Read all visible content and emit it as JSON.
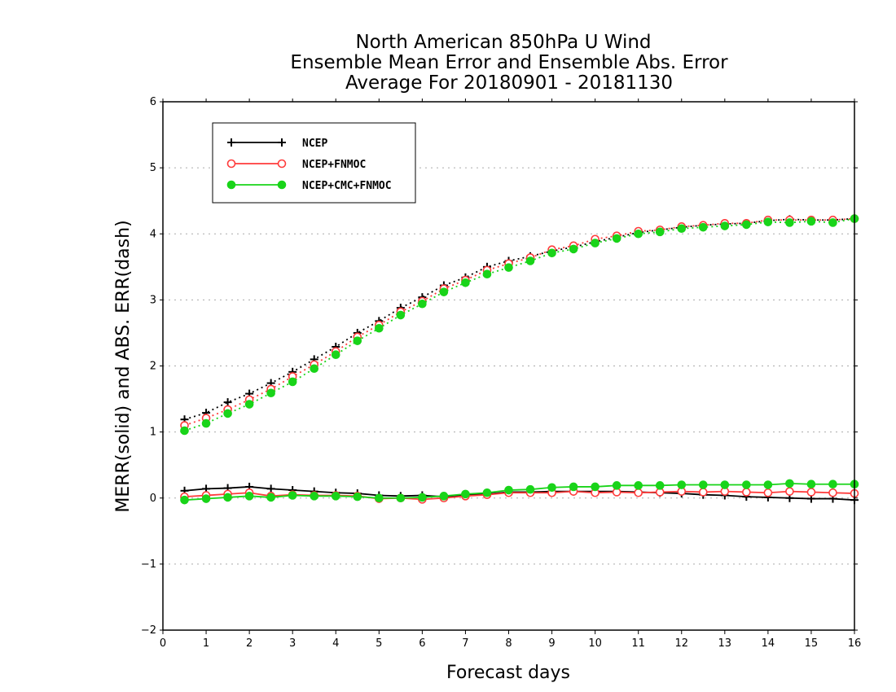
{
  "chart_data": {
    "type": "line",
    "title": [
      "North American 850hPa U Wind",
      "Ensemble Mean Error and Ensemble Abs. Error",
      "Average For 20180901 - 20181130"
    ],
    "xlabel": "Forecast days",
    "ylabel": "MERR(solid) and ABS. ERR(dash)",
    "xlim": [
      0,
      16
    ],
    "ylim": [
      -2,
      6
    ],
    "xticks": [
      0,
      1,
      2,
      3,
      4,
      5,
      6,
      7,
      8,
      9,
      10,
      11,
      12,
      13,
      14,
      15,
      16
    ],
    "yticks": [
      -2,
      -1,
      0,
      1,
      2,
      3,
      4,
      5,
      6
    ],
    "grid": "horizontal dotted",
    "legend_position": "top-left",
    "x": [
      0.5,
      1,
      1.5,
      2,
      2.5,
      3,
      3.5,
      4,
      4.5,
      5,
      5.5,
      6,
      6.5,
      7,
      7.5,
      8,
      8.5,
      9,
      9.5,
      10,
      10.5,
      11,
      11.5,
      12,
      12.5,
      13,
      13.5,
      14,
      14.5,
      15,
      15.5,
      16
    ],
    "series": [
      {
        "name": "NCEP",
        "color": "#000000",
        "marker": "plus",
        "merr": [
          0.11,
          0.14,
          0.15,
          0.17,
          0.14,
          0.12,
          0.1,
          0.08,
          0.07,
          0.04,
          0.03,
          0.04,
          0.02,
          0.05,
          0.06,
          0.09,
          0.09,
          0.1,
          0.1,
          0.1,
          0.1,
          0.09,
          0.08,
          0.07,
          0.05,
          0.04,
          0.02,
          0.01,
          0.0,
          -0.01,
          -0.01,
          -0.03
        ],
        "abs_err": [
          1.19,
          1.29,
          1.45,
          1.58,
          1.74,
          1.91,
          2.1,
          2.29,
          2.5,
          2.68,
          2.88,
          3.04,
          3.22,
          3.34,
          3.5,
          3.59,
          3.66,
          3.74,
          3.8,
          3.88,
          3.95,
          4.02,
          4.06,
          4.1,
          4.13,
          4.15,
          4.16,
          4.2,
          4.22,
          4.21,
          4.21,
          4.23
        ]
      },
      {
        "name": "NCEP+FNMOC",
        "color": "#ff3b3b",
        "marker": "open-circle",
        "merr": [
          0.02,
          0.04,
          0.06,
          0.08,
          0.03,
          0.05,
          0.04,
          0.04,
          0.03,
          -0.01,
          0.0,
          -0.02,
          0.0,
          0.03,
          0.05,
          0.08,
          0.08,
          0.08,
          0.1,
          0.08,
          0.09,
          0.08,
          0.09,
          0.1,
          0.09,
          0.1,
          0.09,
          0.08,
          0.1,
          0.09,
          0.08,
          0.07
        ],
        "abs_err": [
          1.1,
          1.21,
          1.34,
          1.49,
          1.65,
          1.84,
          2.02,
          2.22,
          2.44,
          2.62,
          2.82,
          2.98,
          3.17,
          3.3,
          3.45,
          3.55,
          3.64,
          3.76,
          3.82,
          3.92,
          3.97,
          4.04,
          4.06,
          4.11,
          4.13,
          4.16,
          4.16,
          4.21,
          4.21,
          4.21,
          4.21,
          4.23
        ]
      },
      {
        "name": "NCEP+CMC+FNMOC",
        "color": "#19d419",
        "marker": "filled-circle",
        "merr": [
          -0.03,
          -0.01,
          0.01,
          0.03,
          0.01,
          0.04,
          0.03,
          0.03,
          0.02,
          0.0,
          0.0,
          0.01,
          0.03,
          0.06,
          0.08,
          0.12,
          0.13,
          0.16,
          0.17,
          0.17,
          0.19,
          0.19,
          0.19,
          0.2,
          0.2,
          0.2,
          0.2,
          0.2,
          0.22,
          0.21,
          0.21,
          0.21
        ],
        "abs_err": [
          1.02,
          1.13,
          1.28,
          1.42,
          1.59,
          1.76,
          1.96,
          2.17,
          2.38,
          2.57,
          2.77,
          2.94,
          3.12,
          3.26,
          3.39,
          3.49,
          3.59,
          3.71,
          3.77,
          3.86,
          3.93,
          4.0,
          4.03,
          4.08,
          4.1,
          4.12,
          4.14,
          4.18,
          4.17,
          4.19,
          4.17,
          4.23
        ]
      }
    ]
  }
}
